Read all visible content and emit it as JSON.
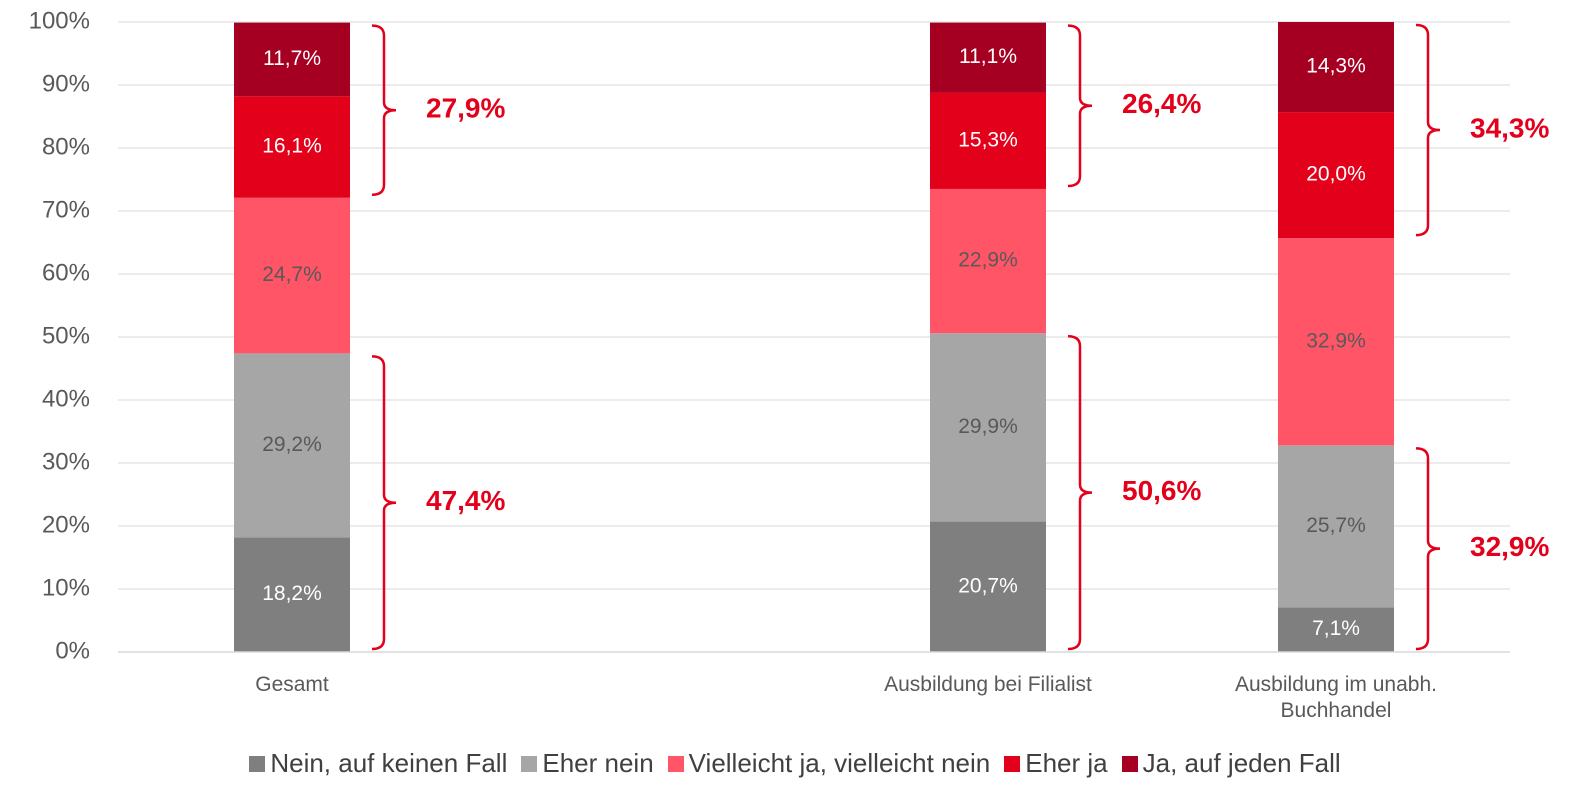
{
  "chart_data": {
    "type": "stacked_bar",
    "categories": [
      "Gesamt",
      null,
      "Ausbildung bei Filialist",
      "Ausbildung im unabh. Buchhandel"
    ],
    "series": [
      {
        "name": "Nein, auf keinen Fall",
        "color": "#7f7f7f",
        "label_color": "#ffffff",
        "values": [
          18.2,
          null,
          20.7,
          7.1
        ],
        "value_labels": [
          "18,2%",
          null,
          "20,7%",
          "7,1%"
        ]
      },
      {
        "name": "Eher nein",
        "color": "#a6a6a6",
        "label_color": "#595959",
        "values": [
          29.2,
          null,
          29.9,
          25.7
        ],
        "value_labels": [
          "29,2%",
          null,
          "29,9%",
          "25,7%"
        ]
      },
      {
        "name": "Vielleicht ja, vielleicht nein",
        "color": "#ff5566",
        "label_color": "#595959",
        "values": [
          24.7,
          null,
          22.9,
          32.9
        ],
        "value_labels": [
          "24,7%",
          null,
          "22,9%",
          "32,9%"
        ]
      },
      {
        "name": "Eher ja",
        "color": "#e3001b",
        "label_color": "#ffffff",
        "values": [
          16.1,
          null,
          15.3,
          20.0
        ],
        "value_labels": [
          "16,1%",
          null,
          "15,3%",
          "20,0%"
        ]
      },
      {
        "name": "Ja, auf jeden Fall",
        "color": "#a50021",
        "label_color": "#ffffff",
        "values": [
          11.7,
          null,
          11.1,
          14.3
        ],
        "value_labels": [
          "11,7%",
          null,
          "11,1%",
          "14,3%"
        ]
      }
    ],
    "brackets": [
      {
        "category": "Gesamt",
        "series": [
          "Eher ja",
          "Ja, auf jeden Fall"
        ],
        "value": 27.9,
        "label": "27,9%"
      },
      {
        "category": "Gesamt",
        "series": [
          "Nein, auf keinen Fall",
          "Eher nein"
        ],
        "value": 47.4,
        "label": "47,4%"
      },
      {
        "category": "Ausbildung bei Filialist",
        "series": [
          "Eher ja",
          "Ja, auf jeden Fall"
        ],
        "value": 26.4,
        "label": "26,4%"
      },
      {
        "category": "Ausbildung bei Filialist",
        "series": [
          "Nein, auf keinen Fall",
          "Eher nein"
        ],
        "value": 50.6,
        "label": "50,6%"
      },
      {
        "category": "Ausbildung im unabh. Buchhandel",
        "series": [
          "Eher ja",
          "Ja, auf jeden Fall"
        ],
        "value": 34.3,
        "label": "34,3%"
      },
      {
        "category": "Ausbildung im unabh. Buchhandel",
        "series": [
          "Nein, auf keinen Fall",
          "Eher nein"
        ],
        "value": 32.9,
        "label": "32,9%"
      }
    ],
    "bracket_color": "#e3001b",
    "ylim": [
      0,
      100
    ],
    "yticks": [
      {
        "value": 0,
        "label": "0%"
      },
      {
        "value": 10,
        "label": "10%"
      },
      {
        "value": 20,
        "label": "20%"
      },
      {
        "value": 30,
        "label": "30%"
      },
      {
        "value": 40,
        "label": "40%"
      },
      {
        "value": 50,
        "label": "50%"
      },
      {
        "value": 60,
        "label": "60%"
      },
      {
        "value": 70,
        "label": "70%"
      },
      {
        "value": 80,
        "label": "80%"
      },
      {
        "value": 90,
        "label": "90%"
      },
      {
        "value": 100,
        "label": "100%"
      }
    ],
    "grid": true,
    "legend": "bottom"
  }
}
